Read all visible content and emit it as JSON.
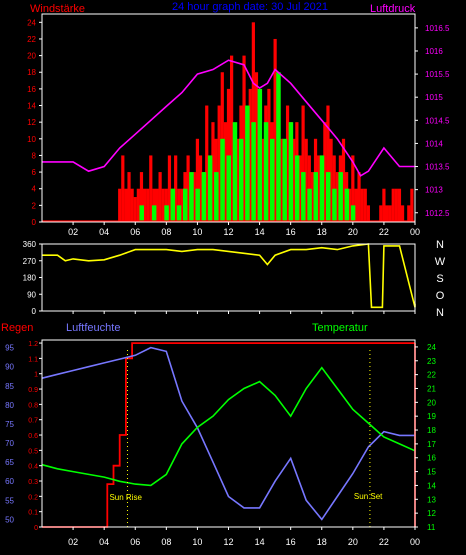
{
  "colors": {
    "background": "#000000",
    "frame": "#ffffff",
    "wind_gust": "#ff0000",
    "wind_mean": "#00ff00",
    "pressure": "#ff00ff",
    "direction": "#ffff00",
    "humidity": "#7777ff",
    "temperature": "#00ff00",
    "rain": "#ff0000",
    "sun_marker": "#ffff00",
    "title": "#0000ff"
  },
  "chart_data": [
    {
      "type": "bar",
      "title": "24 hour graph date: 30 Jul 2021",
      "ylabel_left": "Windstärke",
      "ylabel_right": "Luftdruck",
      "x_tick_labels": [
        "02",
        "04",
        "06",
        "08",
        "10",
        "12",
        "14",
        "16",
        "18",
        "20",
        "22",
        "00"
      ],
      "yleft_ticks": [
        "0",
        "2",
        "4",
        "6",
        "8",
        "10",
        "12",
        "14",
        "16",
        "18",
        "20",
        "22",
        "24"
      ],
      "yright_ticks": [
        "1012.5",
        "1013",
        "1013.5",
        "1014",
        "1014.5",
        "1015",
        "1015.5",
        "1016",
        "1016.5"
      ],
      "ylim_left": [
        0,
        25
      ],
      "ylim_right": [
        1012.3,
        1016.8
      ],
      "pressure": {
        "hours": [
          0,
          2,
          3,
          4,
          5,
          6,
          7,
          8,
          9,
          10,
          11,
          12,
          13,
          13.6,
          14,
          14.5,
          15,
          16,
          17,
          18,
          19,
          20,
          20.5,
          21,
          22,
          23,
          24
        ],
        "values": [
          1013.6,
          1013.6,
          1013.4,
          1013.5,
          1013.9,
          1014.2,
          1014.5,
          1014.8,
          1015.1,
          1015.5,
          1015.6,
          1015.8,
          1015.7,
          1015.3,
          1015.2,
          1015.3,
          1015.6,
          1015.3,
          1014.9,
          1014.5,
          1014.1,
          1013.6,
          1013.3,
          1013.4,
          1013.9,
          1013.5,
          1013.5
        ]
      },
      "gusts": {
        "hours": [
          5.0,
          5.2,
          5.4,
          5.6,
          5.8,
          6.0,
          6.2,
          6.4,
          6.6,
          6.8,
          7.0,
          7.2,
          7.4,
          7.6,
          7.8,
          8.0,
          8.2,
          8.4,
          8.6,
          8.8,
          9.0,
          9.2,
          9.4,
          9.6,
          9.8,
          10.0,
          10.2,
          10.4,
          10.6,
          10.8,
          11.0,
          11.2,
          11.4,
          11.6,
          11.8,
          12.0,
          12.2,
          12.4,
          12.6,
          12.8,
          13.0,
          13.2,
          13.4,
          13.6,
          13.8,
          14.0,
          14.2,
          14.4,
          14.6,
          14.8,
          15.0,
          15.2,
          15.4,
          15.6,
          15.8,
          16.0,
          16.2,
          16.4,
          16.6,
          16.8,
          17.0,
          17.2,
          17.4,
          17.6,
          17.8,
          18.0,
          18.2,
          18.4,
          18.6,
          18.8,
          19.0,
          19.2,
          19.4,
          19.6,
          19.8,
          20.0,
          20.2,
          20.4,
          20.6,
          20.8,
          21.0,
          21.2,
          21.4,
          21.6,
          21.8,
          22.0,
          22.2,
          22.4,
          22.6,
          22.8,
          23.0,
          23.2,
          23.4,
          23.6,
          23.8
        ],
        "values": [
          4,
          8,
          4,
          6,
          4,
          3,
          4,
          6,
          4,
          4,
          8,
          4,
          4,
          6,
          4,
          4,
          8,
          4,
          8,
          4,
          4,
          6,
          8,
          4,
          6,
          10,
          8,
          6,
          14,
          8,
          12,
          10,
          14,
          18,
          12,
          16,
          20,
          8,
          10,
          14,
          20,
          12,
          16,
          24,
          18,
          12,
          10,
          14,
          16,
          12,
          22,
          14,
          10,
          8,
          14,
          12,
          10,
          12,
          8,
          14,
          10,
          8,
          6,
          10,
          8,
          8,
          12,
          14,
          10,
          8,
          6,
          8,
          10,
          6,
          4,
          8,
          4,
          6,
          4,
          4,
          2,
          0,
          0,
          0,
          2,
          4,
          2,
          2,
          4,
          4,
          4,
          2,
          0,
          2,
          4
        ]
      },
      "mean_wind": {
        "hours": [
          6.0,
          6.4,
          6.8,
          7.2,
          7.6,
          8.0,
          8.4,
          8.8,
          9.2,
          9.6,
          10.0,
          10.4,
          10.8,
          11.2,
          11.6,
          12.0,
          12.4,
          12.8,
          13.2,
          13.6,
          14.0,
          14.4,
          14.8,
          15.2,
          15.6,
          16.0,
          16.4,
          16.8,
          17.2,
          17.6,
          18.0,
          18.4,
          18.8,
          19.2,
          19.6,
          20.0
        ],
        "values": [
          0,
          2,
          0,
          2,
          0,
          2,
          4,
          2,
          4,
          6,
          4,
          6,
          8,
          6,
          10,
          8,
          12,
          10,
          14,
          12,
          16,
          12,
          10,
          18,
          10,
          12,
          8,
          6,
          4,
          6,
          8,
          6,
          4,
          6,
          4,
          2
        ]
      }
    },
    {
      "type": "line",
      "ylabel_right_letters": [
        "N",
        "W",
        "S",
        "O",
        "N"
      ],
      "yleft_ticks": [
        "0",
        "90",
        "180",
        "270",
        "360"
      ],
      "x_tick_labels": [
        "02",
        "04",
        "06",
        "08",
        "10",
        "12",
        "14",
        "16",
        "18",
        "20",
        "22",
        "00"
      ],
      "ylim": [
        0,
        360
      ],
      "direction": {
        "hours": [
          0,
          1,
          1.5,
          2,
          3,
          4,
          5,
          6,
          7,
          8,
          9,
          10,
          11,
          12,
          13,
          14,
          14.5,
          15,
          16,
          17,
          18,
          19,
          20,
          21,
          21.2,
          21.9,
          22,
          23,
          24,
          24
        ],
        "values": [
          300,
          300,
          270,
          280,
          270,
          275,
          300,
          330,
          330,
          330,
          320,
          330,
          330,
          320,
          310,
          300,
          250,
          300,
          330,
          330,
          340,
          330,
          350,
          360,
          20,
          20,
          350,
          350,
          20,
          40
        ]
      }
    },
    {
      "type": "line",
      "ylabel_left": "Regen",
      "ylabel_mid": "Luftfeuchte",
      "ylabel_right": "Temperatur",
      "x_tick_labels": [
        "02",
        "04",
        "06",
        "08",
        "10",
        "12",
        "14",
        "16",
        "18",
        "20",
        "22",
        "00"
      ],
      "rain_ticks": [
        "0",
        "0.1",
        "0.2",
        "0.3",
        "0.4",
        "0.5",
        "0.6",
        "0.7",
        "0.8",
        "0.9",
        "1",
        "1.1",
        "1.2"
      ],
      "humidity_ticks": [
        "50",
        "55",
        "60",
        "65",
        "70",
        "75",
        "80",
        "85",
        "90",
        "95"
      ],
      "temperature_ticks": [
        "11",
        "12",
        "13",
        "14",
        "15",
        "16",
        "17",
        "18",
        "19",
        "20",
        "21",
        "22",
        "23",
        "24"
      ],
      "humidity": {
        "hours": [
          0,
          1,
          2,
          3,
          4,
          5,
          6,
          7,
          8,
          9,
          10,
          11,
          12,
          13,
          14,
          15,
          16,
          17,
          18,
          19,
          20,
          21,
          22,
          23,
          24
        ],
        "values": [
          87,
          88,
          89,
          90,
          91,
          92,
          93,
          95,
          94,
          81,
          74,
          65,
          56,
          53,
          53,
          60,
          66,
          55,
          50,
          56,
          62,
          69,
          73,
          72,
          72
        ]
      },
      "temperature": {
        "hours": [
          0,
          1,
          2,
          3,
          4,
          5,
          6,
          7,
          8,
          9,
          10,
          11,
          12,
          13,
          14,
          15,
          16,
          17,
          18,
          19,
          20,
          21,
          22,
          23,
          24
        ],
        "values": [
          15.5,
          15.2,
          15.0,
          14.8,
          14.6,
          14.3,
          14.1,
          14.0,
          14.8,
          17.0,
          18.2,
          19.0,
          20.2,
          21.0,
          21.5,
          20.5,
          19.0,
          21.0,
          22.5,
          21.0,
          19.5,
          18.5,
          17.5,
          17.0,
          16.5
        ]
      },
      "rain": {
        "hours": [
          0,
          3.8,
          4.2,
          4.6,
          5.0,
          5.4,
          5.8,
          6.2,
          24
        ],
        "values": [
          0,
          0,
          0.28,
          0.4,
          0.6,
          1.1,
          1.2,
          1.2,
          1.2
        ]
      },
      "annotations": {
        "sunrise_label": "Sun Rise",
        "sunset_label": "Sun Set",
        "sunrise_hour": 5.5,
        "sunset_hour": 21.1
      }
    }
  ]
}
